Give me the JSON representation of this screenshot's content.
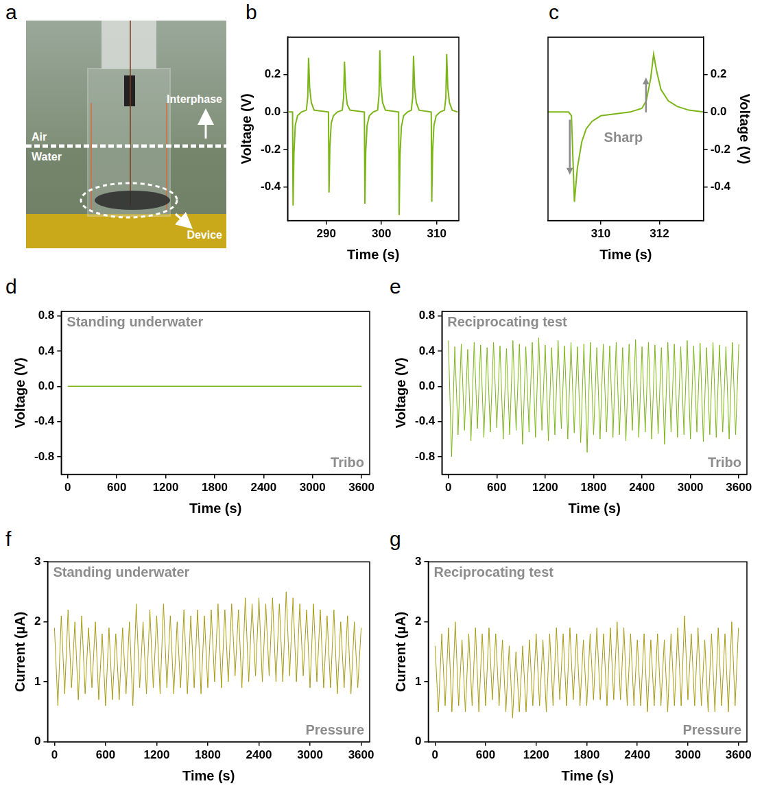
{
  "image": {
    "label": "a",
    "texts": {
      "air": "Air",
      "water": "Water",
      "interphase": "Interphase",
      "device": "Device"
    }
  },
  "chart_data": [
    {
      "label": "b",
      "type": "line",
      "color": "#7cb518",
      "grid": false,
      "x_label": "Time (s)",
      "y_label": "Voltage (V)",
      "xlim": [
        283,
        314
      ],
      "xticks": [
        290,
        300,
        310
      ],
      "ylim": [
        -0.58,
        0.4
      ],
      "yticks": [
        -0.4,
        -0.2,
        {
          "value": 0,
          "label": "0.0"
        },
        0.2
      ],
      "x": [
        283.2,
        283.9,
        284.0,
        284.15,
        284.4,
        284.8,
        285.5,
        286.4,
        286.65,
        286.8,
        287.0,
        287.3,
        287.8,
        290.4,
        290.5,
        290.65,
        290.9,
        291.3,
        292.0,
        292.9,
        293.15,
        293.3,
        293.5,
        293.8,
        294.3,
        296.9,
        297.0,
        297.15,
        297.4,
        297.8,
        298.5,
        299.3,
        299.55,
        299.7,
        299.9,
        300.2,
        300.7,
        303.1,
        303.2,
        303.35,
        303.6,
        304.0,
        304.7,
        305.4,
        305.65,
        305.8,
        306.0,
        306.3,
        306.8,
        309.0,
        309.1,
        309.25,
        309.5,
        309.9,
        310.6,
        311.4,
        311.65,
        311.8,
        312.0,
        312.3,
        312.8,
        313.8
      ],
      "values": [
        0.0,
        0.0,
        -0.5,
        -0.22,
        -0.07,
        -0.02,
        0.0,
        0.01,
        0.08,
        0.29,
        0.13,
        0.05,
        0.01,
        0.0,
        -0.43,
        -0.19,
        -0.06,
        -0.02,
        0.0,
        0.01,
        0.08,
        0.27,
        0.12,
        0.04,
        0.01,
        0.0,
        -0.49,
        -0.21,
        -0.07,
        -0.02,
        0.0,
        0.01,
        0.09,
        0.33,
        0.14,
        0.05,
        0.01,
        0.0,
        -0.55,
        -0.23,
        -0.08,
        -0.02,
        0.0,
        0.01,
        0.08,
        0.3,
        0.13,
        0.05,
        0.01,
        0.0,
        -0.48,
        -0.21,
        -0.07,
        -0.02,
        0.0,
        0.01,
        0.08,
        0.31,
        0.13,
        0.05,
        0.01,
        0.0
      ]
    },
    {
      "label": "c",
      "type": "line",
      "color": "#7cb518",
      "grid": false,
      "x_label": "Time (s)",
      "y_label": "Voltage (V)",
      "annotations": [
        "Sharp"
      ],
      "xlim": [
        308.2,
        313.5
      ],
      "xticks": [
        310,
        312
      ],
      "ylim": [
        -0.58,
        0.4
      ],
      "yticks": [
        -0.4,
        -0.2,
        {
          "value": 0,
          "label": "0.0"
        },
        0.2
      ],
      "x": [
        308.2,
        308.9,
        309.0,
        309.1,
        309.2,
        309.35,
        309.5,
        309.7,
        310.0,
        310.5,
        311.0,
        311.4,
        311.55,
        311.7,
        311.8,
        311.9,
        312.05,
        312.3,
        312.6,
        313.0,
        313.5
      ],
      "values": [
        0.0,
        0.0,
        -0.02,
        -0.48,
        -0.3,
        -0.16,
        -0.09,
        -0.05,
        -0.02,
        -0.01,
        0.0,
        0.02,
        0.06,
        0.18,
        0.31,
        0.22,
        0.12,
        0.06,
        0.03,
        0.01,
        0.0
      ]
    },
    {
      "label": "d",
      "type": "line",
      "color": "#7cb518",
      "grid": false,
      "x_label": "Time (s)",
      "y_label": "Voltage (V)",
      "annotations": [
        "Standing underwater",
        "Tribo"
      ],
      "xlim": [
        -80,
        3700
      ],
      "xticks": [
        0,
        600,
        1200,
        1800,
        2400,
        3000,
        3600
      ],
      "ylim": [
        -1.0,
        0.85
      ],
      "yticks": [
        -0.8,
        -0.4,
        {
          "value": 0,
          "label": "0.0"
        },
        0.4,
        0.8
      ],
      "x": [
        0,
        600,
        1200,
        1800,
        2400,
        3000,
        3600
      ],
      "values": [
        0,
        0,
        0,
        0,
        0,
        0,
        0
      ]
    },
    {
      "label": "e",
      "type": "line",
      "color": "#7cb518",
      "grid": false,
      "x_label": "Time (s)",
      "y_label": "Voltage (V)",
      "annotations": [
        "Reciprocating test",
        "Tribo"
      ],
      "xlim": [
        -80,
        3700
      ],
      "xticks": [
        0,
        600,
        1200,
        1800,
        2400,
        3000,
        3600
      ],
      "ylim": [
        -1.0,
        0.85
      ],
      "yticks": [
        -0.8,
        -0.4,
        {
          "value": 0,
          "label": "0.0"
        },
        0.4,
        0.8
      ],
      "x": [
        0,
        40,
        80,
        120,
        160,
        200,
        240,
        280,
        320,
        360,
        400,
        440,
        480,
        520,
        560,
        600,
        640,
        680,
        720,
        760,
        800,
        840,
        880,
        920,
        960,
        1000,
        1040,
        1080,
        1120,
        1160,
        1200,
        1240,
        1280,
        1320,
        1360,
        1400,
        1440,
        1480,
        1520,
        1560,
        1600,
        1640,
        1680,
        1720,
        1760,
        1800,
        1840,
        1880,
        1920,
        1960,
        2000,
        2040,
        2080,
        2120,
        2160,
        2200,
        2240,
        2280,
        2320,
        2360,
        2400,
        2440,
        2480,
        2520,
        2560,
        2600,
        2640,
        2680,
        2720,
        2760,
        2800,
        2840,
        2880,
        2920,
        2960,
        3000,
        3040,
        3080,
        3120,
        3160,
        3200,
        3240,
        3280,
        3320,
        3360,
        3400,
        3440,
        3480,
        3520,
        3560,
        3600
      ],
      "values": [
        0.52,
        -0.8,
        0.45,
        -0.55,
        0.48,
        -0.5,
        0.42,
        -0.62,
        0.5,
        -0.48,
        0.47,
        -0.58,
        0.44,
        -0.52,
        0.5,
        -0.47,
        0.46,
        -0.6,
        0.43,
        -0.55,
        0.52,
        -0.5,
        0.48,
        -0.66,
        0.45,
        -0.52,
        0.5,
        -0.58,
        0.55,
        -0.5,
        0.47,
        -0.62,
        0.44,
        -0.55,
        0.52,
        -0.48,
        0.46,
        -0.6,
        0.5,
        -0.53,
        0.45,
        -0.64,
        0.48,
        -0.75,
        0.5,
        -0.55,
        0.44,
        -0.6,
        0.48,
        -0.52,
        0.46,
        -0.58,
        0.5,
        -0.55,
        0.44,
        -0.62,
        0.48,
        -0.5,
        0.53,
        -0.58,
        0.45,
        -0.52,
        0.5,
        -0.6,
        0.47,
        -0.54,
        0.44,
        -0.66,
        0.5,
        -0.52,
        0.48,
        -0.58,
        0.45,
        -0.55,
        0.52,
        -0.6,
        0.46,
        -0.52,
        0.49,
        -0.63,
        0.44,
        -0.55,
        0.5,
        -0.58,
        0.47,
        -0.52,
        0.45,
        -0.6,
        0.5,
        -0.55,
        0.48
      ]
    },
    {
      "label": "f",
      "type": "line",
      "color": "#a89a14",
      "grid": false,
      "x_label": "Time (s)",
      "y_label": "Current (µA)",
      "annotations": [
        "Standing underwater",
        "Pressure"
      ],
      "xlim": [
        -80,
        3700
      ],
      "xticks": [
        0,
        600,
        1200,
        1800,
        2400,
        3000,
        3600
      ],
      "ylim": [
        0,
        3
      ],
      "yticks": [
        0,
        1,
        2,
        3
      ],
      "x": [
        0,
        40,
        80,
        120,
        160,
        200,
        240,
        280,
        320,
        360,
        400,
        440,
        480,
        520,
        560,
        600,
        640,
        680,
        720,
        760,
        800,
        840,
        880,
        920,
        960,
        1000,
        1040,
        1080,
        1120,
        1160,
        1200,
        1240,
        1280,
        1320,
        1360,
        1400,
        1440,
        1480,
        1520,
        1560,
        1600,
        1640,
        1680,
        1720,
        1760,
        1800,
        1840,
        1880,
        1920,
        1960,
        2000,
        2040,
        2080,
        2120,
        2160,
        2200,
        2240,
        2280,
        2320,
        2360,
        2400,
        2440,
        2480,
        2520,
        2560,
        2600,
        2640,
        2680,
        2720,
        2760,
        2800,
        2840,
        2880,
        2920,
        2960,
        3000,
        3040,
        3080,
        3120,
        3160,
        3200,
        3240,
        3280,
        3320,
        3360,
        3400,
        3440,
        3480,
        3520,
        3560,
        3600
      ],
      "values": [
        1.9,
        0.6,
        2.1,
        0.8,
        2.2,
        0.9,
        2.0,
        0.7,
        2.1,
        0.8,
        1.9,
        0.9,
        2.0,
        0.7,
        1.8,
        0.6,
        1.9,
        0.7,
        1.8,
        0.7,
        1.9,
        0.8,
        2.0,
        0.6,
        2.3,
        0.9,
        2.0,
        0.8,
        2.2,
        0.9,
        2.1,
        0.8,
        2.3,
        0.9,
        2.1,
        0.8,
        2.0,
        0.9,
        2.2,
        0.8,
        2.1,
        0.9,
        2.2,
        0.8,
        2.1,
        0.9,
        2.2,
        1.0,
        2.3,
        0.9,
        2.2,
        1.0,
        2.3,
        1.1,
        2.2,
        0.9,
        2.4,
        1.0,
        2.3,
        1.1,
        2.4,
        1.0,
        2.3,
        1.1,
        2.4,
        1.0,
        2.3,
        1.0,
        2.5,
        1.1,
        2.4,
        1.0,
        2.3,
        1.1,
        2.2,
        0.9,
        2.3,
        1.0,
        2.2,
        0.9,
        2.1,
        0.9,
        2.2,
        0.8,
        2.0,
        0.9,
        2.1,
        0.8,
        2.0,
        0.9,
        1.9
      ]
    },
    {
      "label": "g",
      "type": "line",
      "color": "#a89a14",
      "grid": false,
      "x_label": "Time (s)",
      "y_label": "Current (µA)",
      "annotations": [
        "Reciprocating test",
        "Pressure"
      ],
      "xlim": [
        -80,
        3700
      ],
      "xticks": [
        0,
        600,
        1200,
        1800,
        2400,
        3000,
        3600
      ],
      "ylim": [
        0,
        3
      ],
      "yticks": [
        0,
        1,
        2,
        3
      ],
      "x": [
        0,
        40,
        80,
        120,
        160,
        200,
        240,
        280,
        320,
        360,
        400,
        440,
        480,
        520,
        560,
        600,
        640,
        680,
        720,
        760,
        800,
        840,
        880,
        920,
        960,
        1000,
        1040,
        1080,
        1120,
        1160,
        1200,
        1240,
        1280,
        1320,
        1360,
        1400,
        1440,
        1480,
        1520,
        1560,
        1600,
        1640,
        1680,
        1720,
        1760,
        1800,
        1840,
        1880,
        1920,
        1960,
        2000,
        2040,
        2080,
        2120,
        2160,
        2200,
        2240,
        2280,
        2320,
        2360,
        2400,
        2440,
        2480,
        2520,
        2560,
        2600,
        2640,
        2680,
        2720,
        2760,
        2800,
        2840,
        2880,
        2920,
        2960,
        3000,
        3040,
        3080,
        3120,
        3160,
        3200,
        3240,
        3280,
        3320,
        3360,
        3400,
        3440,
        3480,
        3520,
        3560,
        3600
      ],
      "values": [
        1.6,
        0.5,
        1.8,
        0.6,
        1.9,
        0.5,
        2.0,
        0.6,
        1.7,
        0.5,
        1.8,
        0.6,
        1.9,
        0.5,
        1.8,
        0.6,
        1.9,
        0.7,
        1.8,
        0.6,
        1.7,
        0.5,
        1.6,
        0.4,
        1.5,
        0.5,
        1.6,
        0.5,
        1.7,
        0.6,
        1.8,
        0.6,
        1.7,
        0.5,
        1.8,
        0.6,
        1.9,
        0.7,
        1.8,
        0.6,
        1.9,
        0.7,
        1.8,
        0.6,
        1.7,
        0.6,
        1.8,
        0.7,
        1.9,
        0.7,
        1.8,
        0.6,
        1.9,
        0.7,
        2.0,
        0.7,
        1.9,
        0.6,
        1.8,
        0.6,
        1.7,
        0.6,
        1.8,
        0.5,
        1.7,
        0.6,
        1.8,
        0.6,
        1.7,
        0.5,
        1.8,
        0.6,
        1.9,
        0.6,
        2.1,
        0.7,
        1.8,
        0.6,
        1.9,
        0.6,
        1.7,
        0.5,
        1.8,
        0.5,
        1.9,
        0.6,
        1.8,
        0.5,
        2.0,
        0.6,
        1.9
      ]
    }
  ]
}
